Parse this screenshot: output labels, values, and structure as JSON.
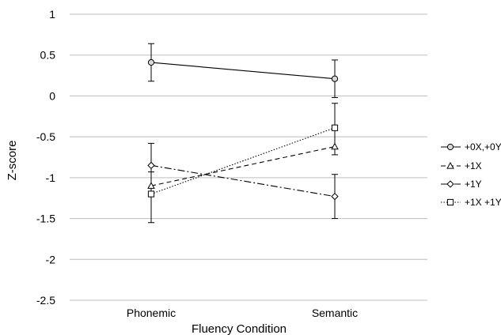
{
  "chart_data": {
    "type": "line",
    "categories": [
      "Phonemic",
      "Semantic"
    ],
    "xlabel": "Fluency Condition",
    "ylabel": "Z-score",
    "ylim": [
      -2.5,
      1
    ],
    "yticks": [
      1,
      0.5,
      0,
      -0.5,
      -1,
      -1.5,
      -2,
      -2.5
    ],
    "ytick_labels": [
      "1",
      "0.5",
      "0",
      "-0.5",
      "-1",
      "-1.5",
      "-2",
      "-2.5"
    ],
    "grid": true,
    "legend_position": "right",
    "series": [
      {
        "name": "+0X,+0Y",
        "values": [
          0.41,
          0.21
        ],
        "err_low": [
          0.18,
          -0.02
        ],
        "err_high": [
          0.64,
          0.44
        ],
        "marker": "circle",
        "line_style": "solid"
      },
      {
        "name": "+1X",
        "values": [
          -1.1,
          -0.62
        ],
        "err_low": [
          null,
          null
        ],
        "err_high": [
          null,
          null
        ],
        "marker": "triangle",
        "line_style": "dashed"
      },
      {
        "name": "+1Y",
        "values": [
          -0.85,
          -1.23
        ],
        "err_low": [
          -1.12,
          -1.5
        ],
        "err_high": [
          -0.58,
          -0.96
        ],
        "marker": "diamond",
        "line_style": "dashdot"
      },
      {
        "name": "+1X +1Y",
        "values": [
          -1.2,
          -0.39
        ],
        "err_low": [
          -1.55,
          -0.72
        ],
        "err_high": [
          -0.93,
          -0.09
        ],
        "marker": "square",
        "line_style": "dotted"
      }
    ]
  }
}
